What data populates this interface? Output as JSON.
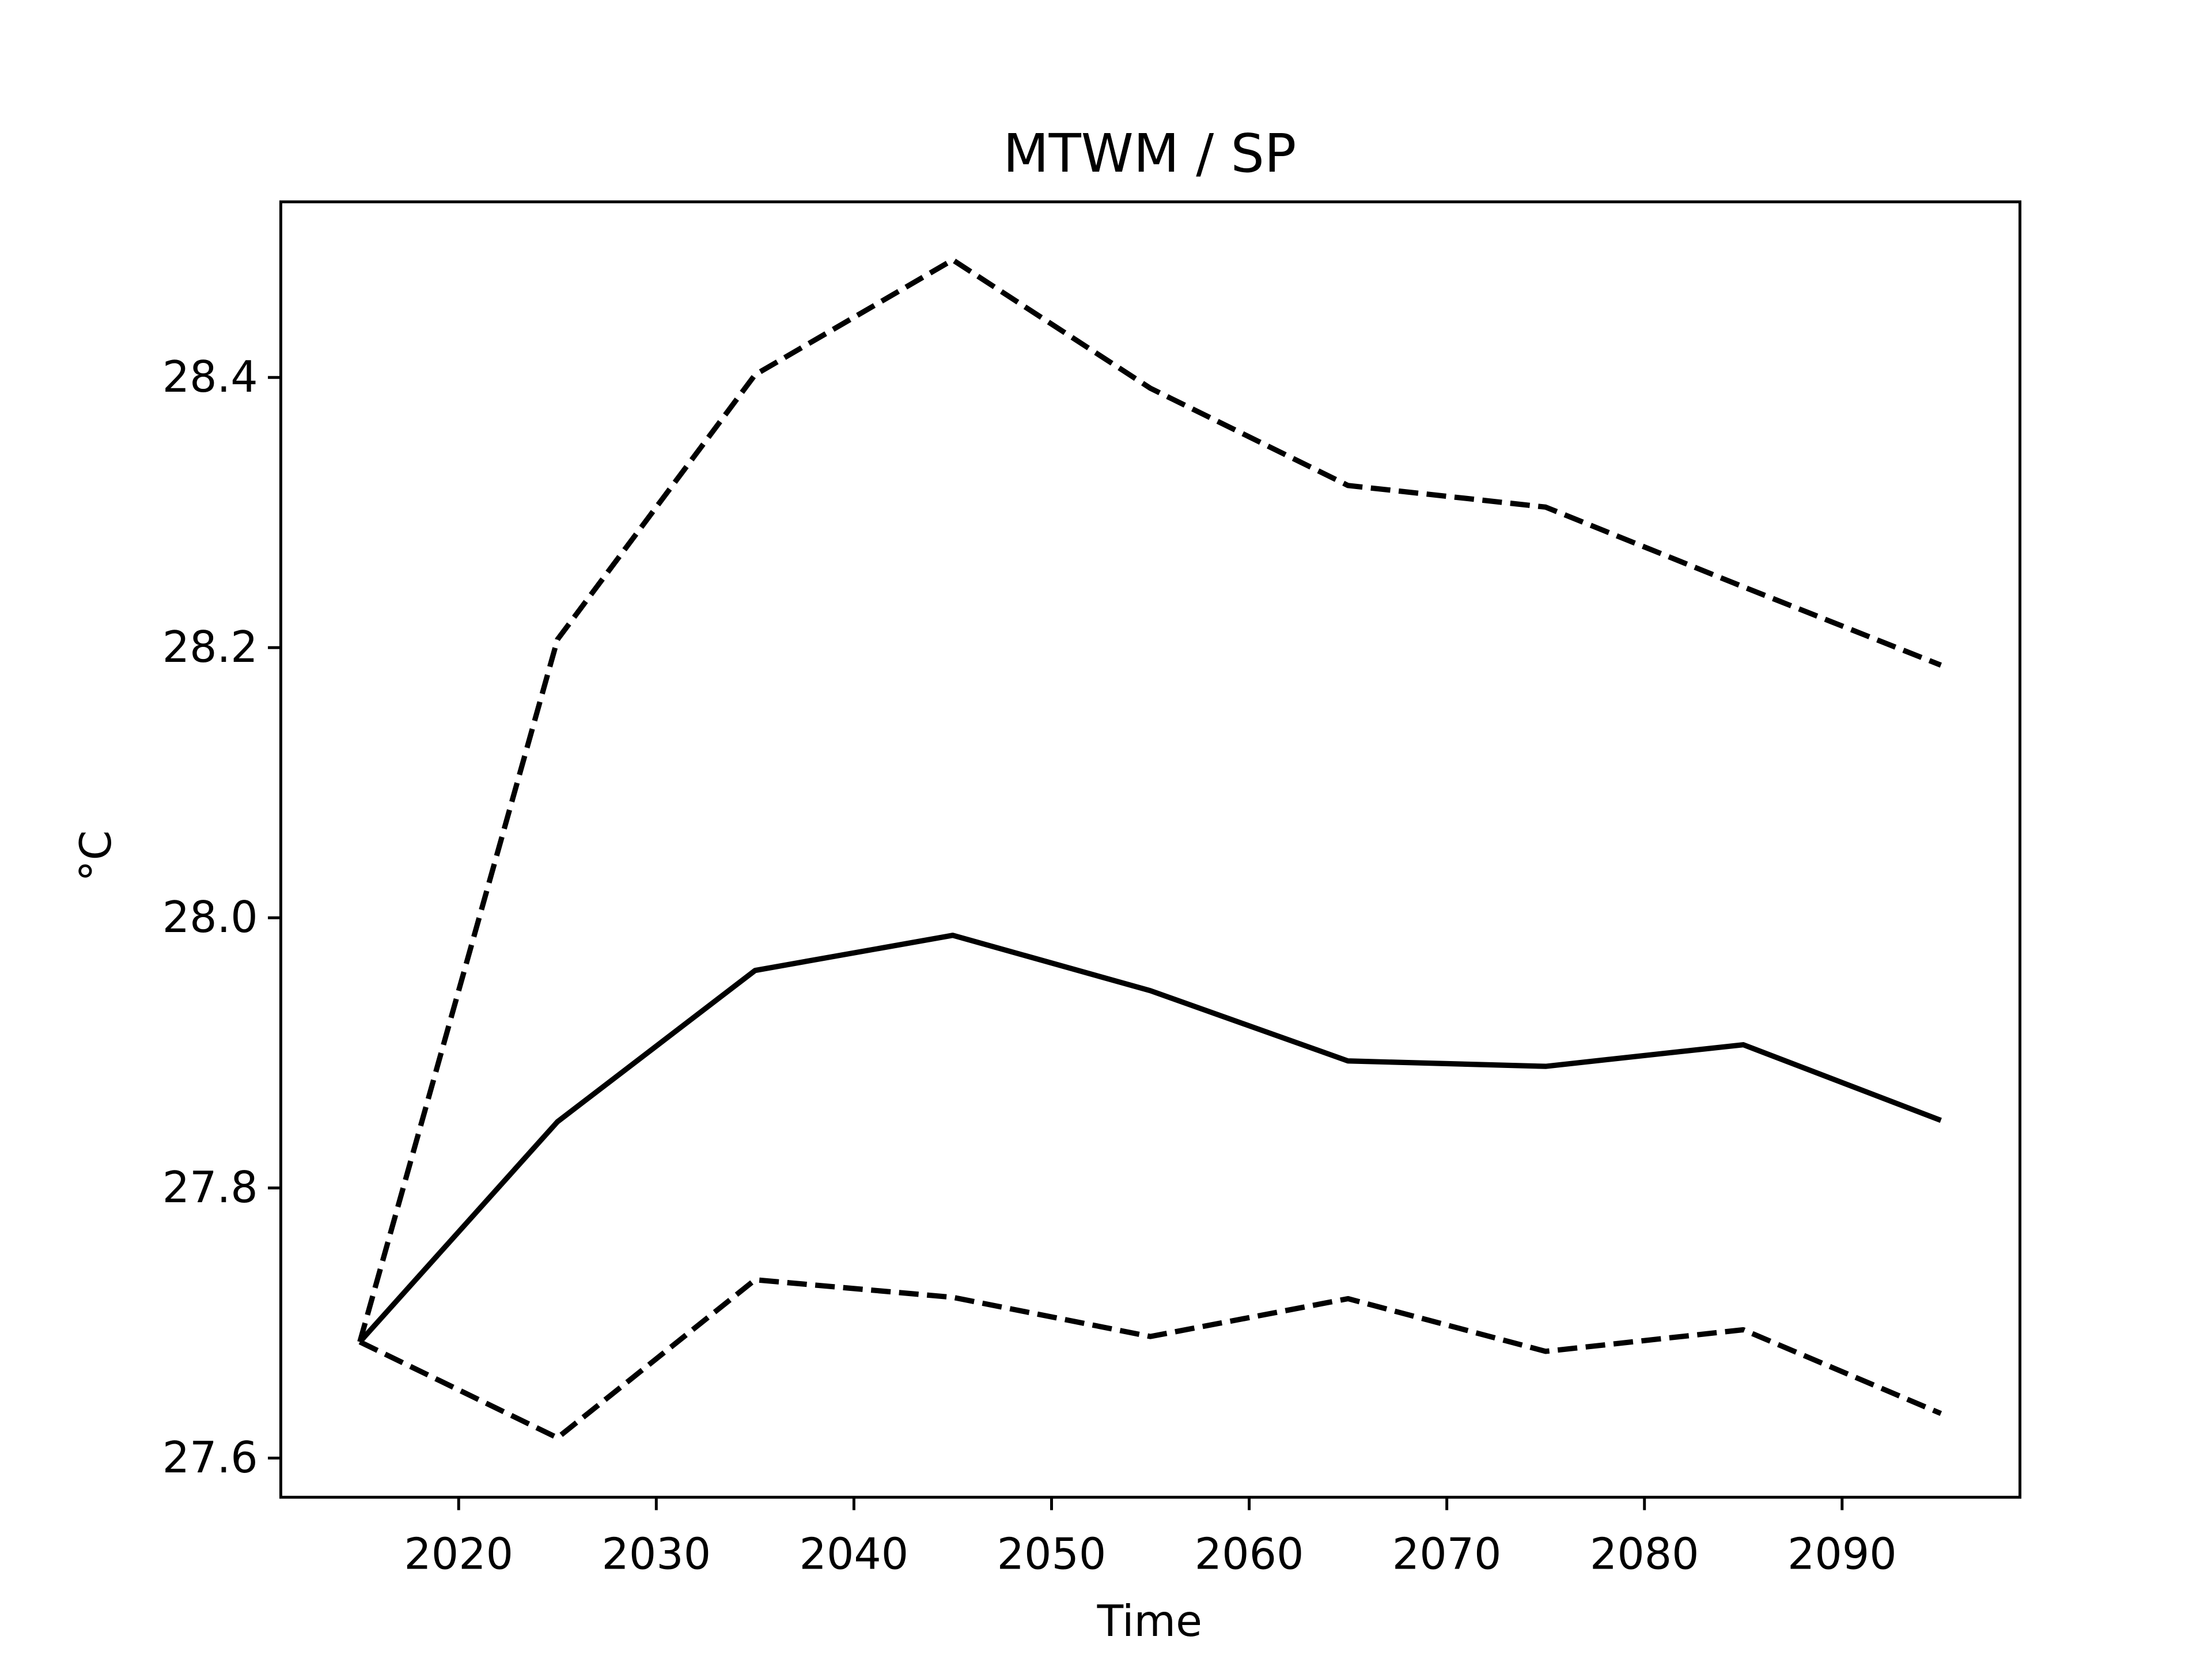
{
  "chart_data": {
    "type": "line",
    "title": "MTWM / SP",
    "x_label": "Time",
    "y_label": "°C",
    "x": [
      2015,
      2025,
      2035,
      2045,
      2055,
      2065,
      2075,
      2085,
      2095
    ],
    "series": [
      {
        "color": "#000000",
        "linestyle": "solid",
        "values": [
          27.686,
          27.849,
          27.961,
          27.987,
          27.946,
          27.894,
          27.89,
          27.906,
          27.85
        ]
      },
      {
        "color": "#000000",
        "linestyle": "dashed",
        "values": [
          27.686,
          28.206,
          28.402,
          28.487,
          28.392,
          28.32,
          28.304,
          28.245,
          28.187
        ]
      },
      {
        "color": "#000000",
        "linestyle": "dashed",
        "values": [
          27.686,
          27.615,
          27.732,
          27.719,
          27.69,
          27.718,
          27.679,
          27.695,
          27.633
        ]
      }
    ],
    "xlim": [
      2011,
      2099
    ],
    "ylim": [
      27.571,
      28.53
    ],
    "xticks": [
      2020,
      2030,
      2040,
      2050,
      2060,
      2070,
      2080,
      2090
    ],
    "yticks": [
      27.6,
      27.8,
      {
        "value": 28,
        "label": "28.0"
      },
      28.2,
      28.4
    ],
    "grid": false
  }
}
